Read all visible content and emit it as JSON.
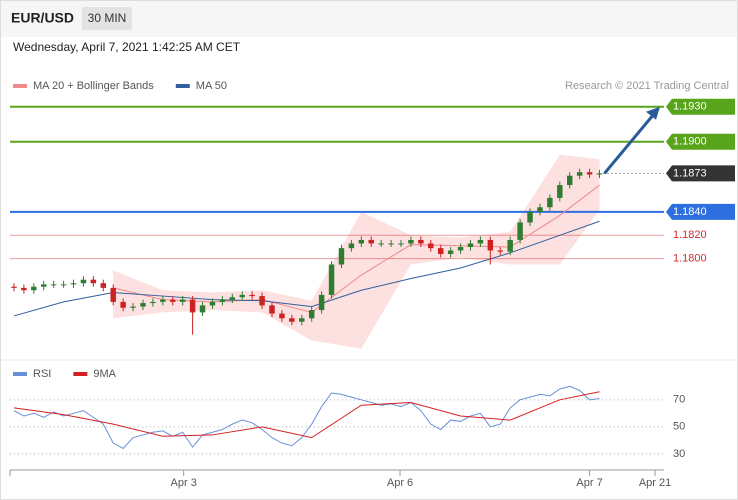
{
  "header": {
    "symbol": "EUR/USD",
    "interval": "30 MIN",
    "timestamp": "Wednesday, April 7, 2021 1:42:25 AM CET"
  },
  "chart_data": [
    {
      "type": "candlestick",
      "credit": "Research © 2021 Trading Central",
      "xlim": [
        -0.4,
        65.5
      ],
      "ylim": [
        1.1715,
        1.197
      ],
      "up_color": "#2e7d32",
      "down_color": "#cc2222",
      "candles": {
        "x": [
          0,
          1,
          2,
          3,
          4,
          5,
          6,
          7,
          8,
          9,
          10,
          11,
          12,
          13,
          14,
          15,
          16,
          17,
          18,
          19,
          20,
          21,
          22,
          23,
          24,
          25,
          26,
          27,
          28,
          29,
          30,
          31,
          32,
          33,
          34,
          35,
          36,
          37,
          38,
          39,
          40,
          41,
          42,
          43,
          44,
          45,
          46,
          47,
          48,
          49,
          50,
          51,
          52,
          53,
          54,
          55,
          56,
          57,
          58,
          59
        ],
        "open": [
          1.1776,
          1.1775,
          1.1773,
          1.1776,
          1.1778,
          1.1778,
          1.1778,
          1.1779,
          1.1782,
          1.1779,
          1.1775,
          1.1763,
          1.1758,
          1.1759,
          1.1762,
          1.1763,
          1.1765,
          1.1763,
          1.1765,
          1.1754,
          1.176,
          1.1763,
          1.1765,
          1.1767,
          1.1769,
          1.1768,
          1.176,
          1.1753,
          1.1749,
          1.1746,
          1.1749,
          1.1756,
          1.1769,
          1.1795,
          1.1809,
          1.1813,
          1.1816,
          1.1813,
          1.1813,
          1.1813,
          1.1813,
          1.1816,
          1.1813,
          1.1809,
          1.1804,
          1.1807,
          1.181,
          1.1813,
          1.1816,
          1.1807,
          1.1806,
          1.1816,
          1.1831,
          1.184,
          1.1844,
          1.1852,
          1.1863,
          1.1871,
          1.1874,
          1.1872
        ],
        "high": [
          1.1779,
          1.1778,
          1.1779,
          1.1781,
          1.1781,
          1.1781,
          1.1782,
          1.1785,
          1.1785,
          1.1782,
          1.1778,
          1.1766,
          1.1762,
          1.1765,
          1.1766,
          1.1768,
          1.1768,
          1.1768,
          1.1768,
          1.1763,
          1.1766,
          1.1768,
          1.177,
          1.1772,
          1.1772,
          1.1771,
          1.1763,
          1.1756,
          1.1752,
          1.1752,
          1.1759,
          1.1772,
          1.1798,
          1.1812,
          1.1816,
          1.1819,
          1.1819,
          1.1816,
          1.1816,
          1.1816,
          1.1819,
          1.1819,
          1.1816,
          1.1812,
          1.181,
          1.1813,
          1.1816,
          1.1819,
          1.1819,
          1.181,
          1.1819,
          1.1834,
          1.1843,
          1.1847,
          1.1855,
          1.1866,
          1.1874,
          1.1877,
          1.1877,
          1.1876
        ],
        "low": [
          1.1772,
          1.177,
          1.177,
          1.1773,
          1.1775,
          1.1775,
          1.1775,
          1.1776,
          1.1776,
          1.1772,
          1.176,
          1.1755,
          1.1755,
          1.1756,
          1.1759,
          1.176,
          1.176,
          1.176,
          1.1735,
          1.1751,
          1.1757,
          1.176,
          1.1762,
          1.1764,
          1.1765,
          1.1757,
          1.175,
          1.1746,
          1.1743,
          1.1743,
          1.1746,
          1.1753,
          1.1766,
          1.1792,
          1.1806,
          1.181,
          1.181,
          1.181,
          1.181,
          1.181,
          1.181,
          1.181,
          1.1806,
          1.1801,
          1.1801,
          1.1804,
          1.1807,
          1.181,
          1.1795,
          1.1803,
          1.1803,
          1.1813,
          1.1828,
          1.1837,
          1.1841,
          1.1849,
          1.186,
          1.1868,
          1.1869,
          1.1869
        ],
        "close": [
          1.1775,
          1.1773,
          1.1776,
          1.1778,
          1.1778,
          1.1778,
          1.1779,
          1.1782,
          1.1779,
          1.1775,
          1.1763,
          1.1758,
          1.1759,
          1.1762,
          1.1763,
          1.1765,
          1.1763,
          1.1765,
          1.1754,
          1.176,
          1.1763,
          1.1765,
          1.1767,
          1.1769,
          1.1768,
          1.176,
          1.1753,
          1.1749,
          1.1746,
          1.1749,
          1.1756,
          1.1769,
          1.1795,
          1.1809,
          1.1813,
          1.1816,
          1.1813,
          1.1813,
          1.1813,
          1.1813,
          1.1816,
          1.1813,
          1.1809,
          1.1804,
          1.1807,
          1.181,
          1.1813,
          1.1816,
          1.1807,
          1.1806,
          1.1816,
          1.1831,
          1.184,
          1.1844,
          1.1852,
          1.1863,
          1.1871,
          1.1874,
          1.1872,
          1.1873
        ]
      },
      "series": [
        {
          "name": "MA 20 + Bollinger Bands",
          "color": "#f08a8a",
          "band_color": "#fde0e0",
          "x": [
            10,
            15,
            20,
            25,
            30,
            35,
            40,
            45,
            50,
            55,
            59
          ],
          "values": [
            1.1775,
            1.1765,
            1.1763,
            1.1765,
            1.1754,
            1.1786,
            1.1812,
            1.1811,
            1.181,
            1.1837,
            1.1863
          ],
          "upper": [
            1.179,
            1.1773,
            1.1771,
            1.1773,
            1.1764,
            1.184,
            1.182,
            1.1818,
            1.1823,
            1.1889,
            1.1885
          ],
          "lower": [
            1.1749,
            1.1754,
            1.1756,
            1.1754,
            1.173,
            1.1723,
            1.1795,
            1.1801,
            1.1795,
            1.1795,
            1.1842
          ]
        },
        {
          "name": "MA 50",
          "color": "#2f5f9e",
          "x": [
            0,
            5,
            10,
            15,
            20,
            25,
            30,
            35,
            40,
            45,
            50,
            55,
            59
          ],
          "values": [
            1.1751,
            1.1763,
            1.1771,
            1.1768,
            1.1765,
            1.1764,
            1.1759,
            1.1773,
            1.1783,
            1.1792,
            1.1805,
            1.182,
            1.1832
          ]
        }
      ],
      "levels": [
        {
          "value": 1.193,
          "label": "1.1930",
          "color": "#58a51c",
          "line": "solid",
          "label_style": "box"
        },
        {
          "value": 1.19,
          "label": "1.1900",
          "color": "#58a51c",
          "line": "solid",
          "label_style": "box"
        },
        {
          "value": 1.1873,
          "label": "1.1873",
          "color": "#333333",
          "line": "dotted",
          "label_style": "box"
        },
        {
          "value": 1.184,
          "label": "1.1840",
          "color": "#2d6fe0",
          "line": "solid",
          "label_style": "box"
        },
        {
          "value": 1.182,
          "label": "1.1820",
          "color": "#d42a2a",
          "line": "solid",
          "label_style": "text"
        },
        {
          "value": 1.18,
          "label": "1.1800",
          "color": "#d42a2a",
          "line": "solid",
          "label_style": "text"
        }
      ],
      "arrow_color": "#2a5a9a"
    },
    {
      "type": "line",
      "xlim": [
        -0.4,
        65.5
      ],
      "ylim": [
        21,
        98
      ],
      "yticks": [
        30,
        50,
        70
      ],
      "grid": true,
      "xticks": [
        {
          "value": 17.1,
          "label": "Apr 3"
        },
        {
          "value": 38.9,
          "label": "Apr 6"
        },
        {
          "value": 58,
          "label": "Apr 7"
        },
        {
          "value": 64.6,
          "label": "Apr 21"
        }
      ],
      "series": [
        {
          "name": "RSI",
          "color": "#6a8fd8",
          "x": [
            0,
            1,
            2,
            3,
            4,
            5,
            6,
            7,
            8,
            9,
            10,
            11,
            12,
            13,
            14,
            15,
            16,
            17,
            18,
            19,
            20,
            21,
            22,
            23,
            24,
            25,
            26,
            27,
            28,
            29,
            30,
            31,
            32,
            33,
            34,
            35,
            36,
            37,
            38,
            39,
            40,
            41,
            42,
            43,
            44,
            45,
            46,
            47,
            48,
            49,
            50,
            51,
            52,
            53,
            54,
            55,
            56,
            57,
            58,
            59
          ],
          "values": [
            62,
            58,
            60,
            57,
            61,
            58,
            60,
            62,
            57,
            52,
            38,
            34,
            42,
            44,
            46,
            47,
            43,
            46,
            35,
            44,
            46,
            48,
            52,
            55,
            53,
            48,
            42,
            38,
            36,
            42,
            52,
            65,
            75,
            74,
            72,
            70,
            68,
            66,
            67,
            65,
            68,
            62,
            52,
            48,
            55,
            54,
            58,
            60,
            50,
            52,
            64,
            70,
            72,
            74,
            73,
            78,
            80,
            77,
            70,
            71
          ]
        },
        {
          "name": "9MA",
          "color": "#d42020",
          "x": [
            0,
            5,
            10,
            15,
            20,
            25,
            30,
            35,
            40,
            45,
            50,
            55,
            59
          ],
          "values": [
            64,
            59,
            52,
            43,
            44,
            50,
            42,
            66,
            68,
            58,
            55,
            70,
            76
          ]
        }
      ]
    }
  ]
}
